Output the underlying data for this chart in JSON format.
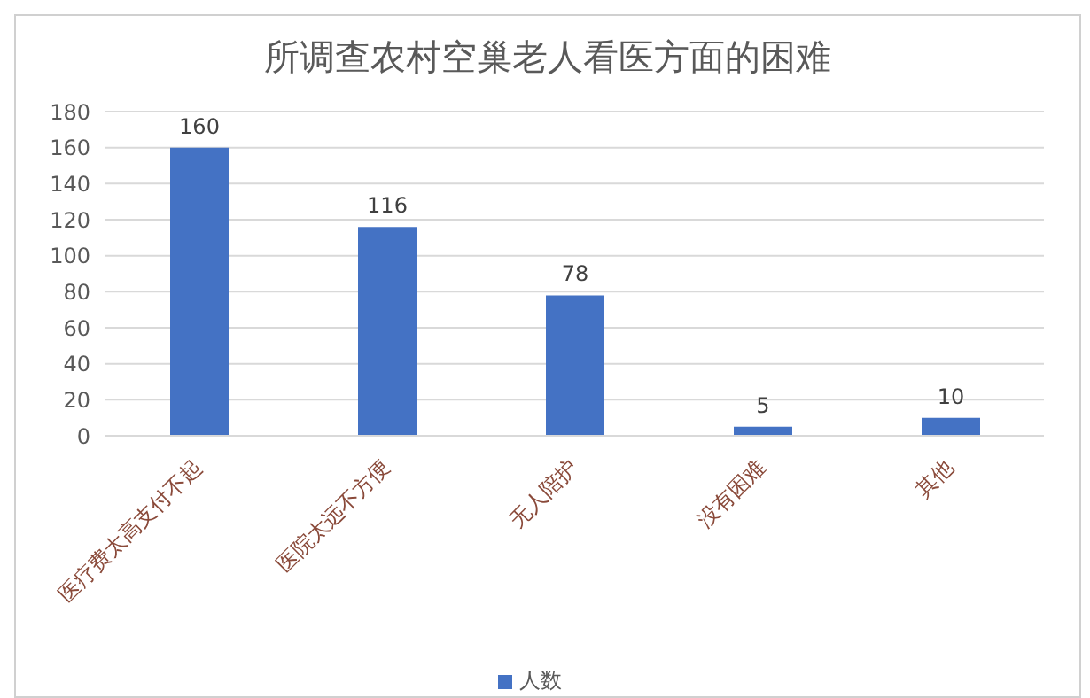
{
  "chart_data": {
    "type": "bar",
    "title": "所调查农村空巢老人看医方面的困难",
    "categories": [
      "医疗费太高支付不起",
      "医院太远不方便",
      "无人陪护",
      "没有困难",
      "其他"
    ],
    "series": [
      {
        "name": "人数",
        "color": "#4472c4",
        "values": [
          160,
          116,
          78,
          5,
          10
        ]
      }
    ],
    "ylim": [
      0,
      180
    ],
    "yticks": [
      0,
      20,
      40,
      60,
      80,
      100,
      120,
      140,
      160,
      180
    ],
    "grid": "y",
    "legend": "bottom",
    "data_labels": true
  }
}
